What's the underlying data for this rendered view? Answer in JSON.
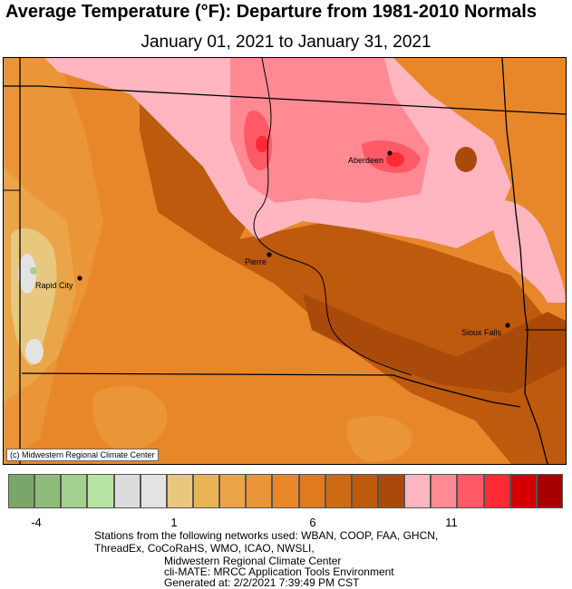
{
  "title": "Average Temperature (°F): Departure from 1981-2010 Normals",
  "subtitle": "January 01, 2021 to January 31, 2021",
  "credit": "(c) Midwestern Regional Climate Center",
  "cities": [
    {
      "name": "Aberdeen"
    },
    {
      "name": "Pierre"
    },
    {
      "name": "Rapid City"
    },
    {
      "name": "Sioux Falls"
    }
  ],
  "legend": {
    "colors": [
      "#7aa66a",
      "#8fbc7a",
      "#a3d08e",
      "#b7e4a2",
      "#dcdcdc",
      "#e3e3e3",
      "#e8c77f",
      "#e9b458",
      "#e9a547",
      "#e99538",
      "#e8872a",
      "#de7a20",
      "#cf6a14",
      "#bd5a0e",
      "#aa4a0a",
      "#ffb6c1",
      "#ff8a94",
      "#ff5a66",
      "#ff2a33",
      "#d40000",
      "#a80000"
    ],
    "tick_labels": [
      "-4",
      "1",
      "6",
      "11"
    ]
  },
  "footer": {
    "line1": "Stations from the following networks used: WBAN, COOP, FAA, GHCN,",
    "line2": "ThreadEx, CoCoRaHS, WMO, ICAO, NWSLI,",
    "line3": "Midwestern Regional Climate Center",
    "line4": "cli-MATE: MRCC Application Tools Environment",
    "line5": "Generated at: 2/2/2021 7:39:49 PM CST"
  }
}
